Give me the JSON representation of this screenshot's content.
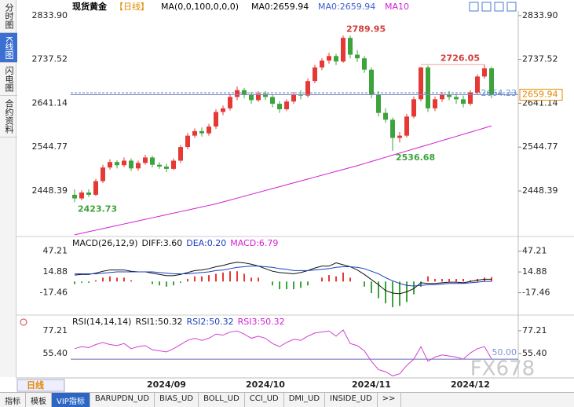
{
  "toolbar": {
    "tabs": [
      "分时图",
      "K线图",
      "闪电图",
      "合约资料"
    ]
  },
  "header": {
    "title": "现货黄金",
    "period": "【日线】",
    "ma_params": "MA(0,0,100,0,0,0)",
    "ma_values": [
      "MA0:2659.94",
      "MA0:2659.94",
      "MA10"
    ]
  },
  "chart_data": [
    {
      "type": "candlestick",
      "categories": [
        null,
        null,
        null,
        null,
        null,
        null,
        null,
        null,
        null,
        null,
        null,
        null,
        null,
        "2024/09",
        null,
        null,
        null,
        null,
        null,
        null,
        null,
        null,
        null,
        null,
        null,
        null,
        null,
        "2024/10",
        null,
        null,
        null,
        null,
        null,
        null,
        null,
        null,
        null,
        null,
        null,
        null,
        null,
        null,
        "2024/11",
        null,
        null,
        null,
        null,
        null,
        null,
        null,
        null,
        null,
        null,
        null,
        null,
        null,
        "2024/12",
        null,
        null,
        null
      ],
      "candles": [
        [
          2440,
          2452,
          2423.73,
          2432
        ],
        [
          2432,
          2450,
          2428,
          2445
        ],
        [
          2445,
          2452,
          2435,
          2440
        ],
        [
          2440,
          2475,
          2437,
          2470
        ],
        [
          2470,
          2506,
          2466,
          2500
        ],
        [
          2500,
          2518,
          2495,
          2512
        ],
        [
          2512,
          2516,
          2498,
          2505
        ],
        [
          2505,
          2522,
          2501,
          2515
        ],
        [
          2515,
          2520,
          2492,
          2498
        ],
        [
          2498,
          2515,
          2493,
          2510
        ],
        [
          2510,
          2528,
          2506,
          2522
        ],
        [
          2522,
          2526,
          2500,
          2506
        ],
        [
          2506,
          2512,
          2497,
          2502
        ],
        [
          2502,
          2508,
          2490,
          2497
        ],
        [
          2497,
          2520,
          2494,
          2515
        ],
        [
          2515,
          2550,
          2510,
          2545
        ],
        [
          2545,
          2576,
          2540,
          2570
        ],
        [
          2570,
          2586,
          2565,
          2580
        ],
        [
          2580,
          2588,
          2568,
          2575
        ],
        [
          2575,
          2596,
          2570,
          2590
        ],
        [
          2590,
          2628,
          2585,
          2622
        ],
        [
          2622,
          2636,
          2615,
          2630
        ],
        [
          2630,
          2662,
          2625,
          2655
        ],
        [
          2655,
          2678,
          2648,
          2670
        ],
        [
          2670,
          2675,
          2652,
          2660
        ],
        [
          2660,
          2666,
          2640,
          2648
        ],
        [
          2648,
          2668,
          2644,
          2662
        ],
        [
          2662,
          2668,
          2648,
          2655
        ],
        [
          2655,
          2660,
          2632,
          2640
        ],
        [
          2640,
          2646,
          2620,
          2628
        ],
        [
          2628,
          2650,
          2624,
          2645
        ],
        [
          2645,
          2666,
          2640,
          2660
        ],
        [
          2660,
          2670,
          2650,
          2658
        ],
        [
          2658,
          2696,
          2654,
          2690
        ],
        [
          2690,
          2726,
          2685,
          2720
        ],
        [
          2720,
          2740,
          2714,
          2735
        ],
        [
          2735,
          2752,
          2728,
          2745
        ],
        [
          2745,
          2750,
          2725,
          2733
        ],
        [
          2733,
          2789.95,
          2730,
          2785
        ],
        [
          2785,
          2790,
          2740,
          2748
        ],
        [
          2748,
          2758,
          2732,
          2740
        ],
        [
          2740,
          2745,
          2708,
          2715
        ],
        [
          2715,
          2720,
          2652,
          2660
        ],
        [
          2660,
          2668,
          2612,
          2620
        ],
        [
          2620,
          2630,
          2598,
          2605
        ],
        [
          2605,
          2610,
          2536.68,
          2565
        ],
        [
          2565,
          2578,
          2555,
          2570
        ],
        [
          2570,
          2618,
          2566,
          2612
        ],
        [
          2612,
          2656,
          2608,
          2650
        ],
        [
          2650,
          2721,
          2645,
          2720
        ],
        [
          2720,
          2724,
          2622,
          2630
        ],
        [
          2630,
          2656,
          2624,
          2650
        ],
        [
          2650,
          2666,
          2644,
          2660
        ],
        [
          2660,
          2668,
          2648,
          2655
        ],
        [
          2655,
          2662,
          2640,
          2650
        ],
        [
          2650,
          2658,
          2632,
          2640
        ],
        [
          2640,
          2670,
          2636,
          2665
        ],
        [
          2665,
          2705,
          2660,
          2700
        ],
        [
          2700,
          2726.05,
          2695,
          2718
        ],
        [
          2718,
          2722,
          2652,
          2659.94
        ]
      ],
      "up_color": "#e53935",
      "down_color": "#3da33d",
      "series": [
        {
          "color": "#d21fd2",
          "values": [
            2352,
            2355.4,
            2358.8,
            2362.2,
            2365.6,
            2369,
            2372.4,
            2375.8,
            2379.2,
            2382.6,
            2386,
            2389.4,
            2392.8,
            2396.2,
            2399.6,
            2403,
            2406.4,
            2409.8,
            2413.2,
            2416.6,
            2420,
            2424.2,
            2428.4,
            2432.6,
            2436.8,
            2441,
            2445.2,
            2449.4,
            2453.6,
            2457.8,
            2462,
            2466.2,
            2470.4,
            2474.6,
            2478.8,
            2483,
            2487.2,
            2491.4,
            2495.6,
            2499.8,
            2504,
            2508.6,
            2513.2,
            2517.8,
            2522.4,
            2527,
            2531.6,
            2536.2,
            2540.8,
            2545.4,
            2550,
            2554.6,
            2559.2,
            2563.8,
            2568.4,
            2573,
            2577.6,
            2582.2,
            2586.8,
            2591.4
          ]
        }
      ],
      "ylim": [
        2350,
        2844
      ],
      "yticks": [
        2448.39,
        2544.77,
        2641.14,
        2737.52,
        {
          "value": 2833.9,
          "label": "2833.90"
        }
      ],
      "ref_line": 2664.23,
      "ref_color": "#3f7fd0"
    },
    {
      "type": "macd",
      "title": "MACD(26,12,9)",
      "legend": [
        "DIFF:3.60",
        "DEA:0.20",
        "MACD:6.79"
      ],
      "series": [
        {
          "color": "#111111",
          "values": [
            10,
            11,
            11,
            13,
            16,
            18,
            18,
            18,
            16,
            15,
            15,
            13,
            11,
            9,
            9,
            11,
            14,
            17,
            18,
            20,
            23,
            25,
            28,
            30,
            29,
            27,
            24,
            20,
            16,
            14,
            13,
            12,
            14,
            17,
            21,
            24,
            24,
            29,
            26,
            23,
            18,
            11,
            3,
            -5,
            -14,
            -18,
            -19,
            -16,
            -11,
            -2,
            -3,
            -3,
            -2,
            -1,
            -1,
            -2,
            0,
            2,
            3.6,
            3.6
          ]
        },
        {
          "color": "#1a3fbf",
          "values": [
            12,
            12,
            12,
            12,
            13,
            14,
            15,
            15,
            15,
            15,
            15,
            15,
            14,
            13,
            12,
            12,
            12,
            13,
            14,
            15,
            17,
            18,
            20,
            22,
            23,
            24,
            24,
            23,
            22,
            20,
            19,
            17,
            17,
            17,
            18,
            19,
            20,
            22,
            23,
            23,
            22,
            20,
            16,
            12,
            6,
            1,
            -3,
            -6,
            -7,
            -6,
            -5,
            -5,
            -4,
            -3,
            -3,
            -3,
            -2,
            -1,
            0.2,
            0.2
          ]
        }
      ],
      "histogram": [
        -4,
        -2,
        -2,
        2,
        6,
        8,
        6,
        6,
        2,
        0,
        0,
        -4,
        -6,
        -8,
        -6,
        -2,
        4,
        8,
        8,
        10,
        12,
        14,
        16,
        16,
        12,
        6,
        6,
        0,
        -6,
        -12,
        -12,
        -12,
        -10,
        -6,
        0,
        6,
        10,
        8,
        14,
        6,
        0,
        -8,
        -18,
        -26,
        -34,
        -40,
        -38,
        -32,
        -20,
        -8,
        8,
        4,
        4,
        4,
        4,
        4,
        2,
        4,
        6,
        6.79
      ],
      "ylim": [
        -51,
        67.6
      ],
      "yticks": [
        -17.46,
        14.88,
        47.21
      ]
    },
    {
      "type": "line",
      "title": "RSI(14,14,14)",
      "legend": [
        "RSI1:50.32",
        "RSI2:50.32",
        "RSI3:50.32"
      ],
      "series": [
        {
          "color": "#d040d0",
          "values": [
            60,
            62,
            61,
            64,
            66,
            64,
            63,
            65,
            60,
            62,
            63,
            59,
            58,
            57,
            60,
            64,
            68,
            70,
            68,
            70,
            74,
            73,
            76,
            77,
            74,
            70,
            72,
            70,
            65,
            62,
            66,
            69,
            68,
            72,
            75,
            76,
            77,
            72,
            78,
            65,
            63,
            58,
            48,
            40,
            38,
            34,
            36,
            44,
            50,
            62,
            48,
            52,
            54,
            53,
            52,
            50,
            56,
            60,
            62,
            50.32
          ]
        }
      ],
      "ref_line": {
        "value": 50,
        "label": "50.00"
      },
      "ylim": [
        32.8,
        90.7
      ],
      "yticks": [
        {
          "value": 55.4,
          "label": "55.40"
        },
        77.21
      ]
    }
  ],
  "footer": {
    "period_button": "日线",
    "tabs": [
      "指标",
      "模板",
      "VIP指标",
      "BARUPDN_UD",
      "BIAS_UD",
      "BOLL_UD",
      "CCI_UD",
      "DMI_UD",
      "INSIDE_UD",
      ">>"
    ]
  },
  "watermark": "FX678"
}
